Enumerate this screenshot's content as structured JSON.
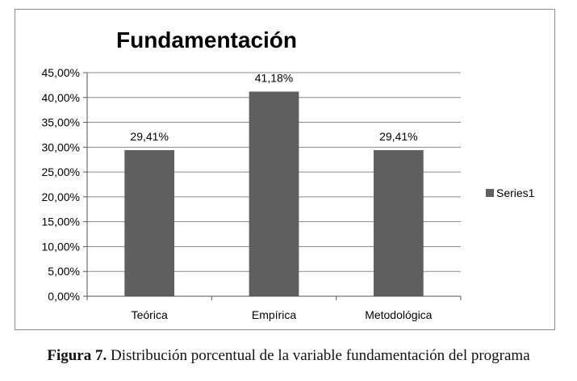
{
  "chart_data": {
    "type": "bar",
    "title": "Fundamentación",
    "categories": [
      "Teórica",
      "Empírica",
      "Metodológica"
    ],
    "series": [
      {
        "name": "Series1",
        "values": [
          29.41,
          41.18,
          29.41
        ],
        "color": "#5f5f5f"
      }
    ],
    "data_labels": [
      "29,41%",
      "41,18%",
      "29,41%"
    ],
    "ylim": [
      0,
      45
    ],
    "yticks": [
      0,
      5,
      10,
      15,
      20,
      25,
      30,
      35,
      40,
      45
    ],
    "ytick_labels": [
      "0,00%",
      "5,00%",
      "10,00%",
      "15,00%",
      "20,00%",
      "25,00%",
      "30,00%",
      "35,00%",
      "40,00%",
      "45,00%"
    ],
    "xlabel": "",
    "ylabel": "",
    "grid": true,
    "legend_position": "right",
    "gridline_color": "#8a8a8a",
    "frame_color": "#8c8c8c"
  },
  "caption": {
    "label": "Figura 7.",
    "text": " Distribución porcentual de la variable fundamentación del programa"
  }
}
